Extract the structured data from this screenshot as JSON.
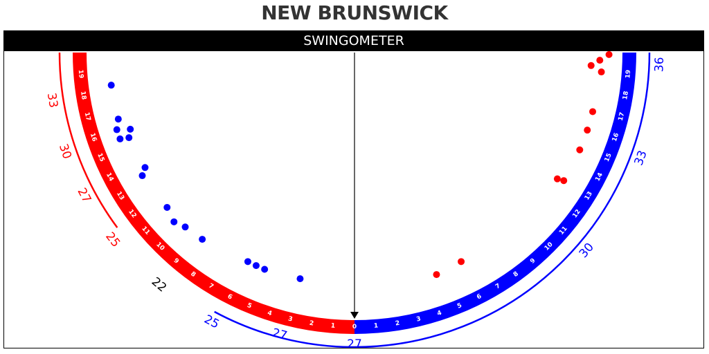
{
  "title": "NEW BRUNSWICK",
  "header": "SWINGOMETER",
  "colors": {
    "left": "#ff0000",
    "right": "#0000ff",
    "neutral": "#000000"
  },
  "chart_data": {
    "type": "scatter",
    "title": "NEW BRUNSWICK",
    "subtitle": "SWINGOMETER",
    "swing_range": [
      0,
      19
    ],
    "center_tick": "0",
    "left_ticks": [
      "1",
      "2",
      "3",
      "4",
      "5",
      "6",
      "7",
      "8",
      "9",
      "10",
      "11",
      "12",
      "13",
      "14",
      "15",
      "16",
      "17",
      "18",
      "19"
    ],
    "right_ticks": [
      "1",
      "2",
      "3",
      "4",
      "5",
      "6",
      "7",
      "8",
      "9",
      "10",
      "11",
      "12",
      "13",
      "14",
      "15",
      "16",
      "17",
      "18",
      "19"
    ],
    "center_label": "27",
    "seat_labels_right": [
      {
        "swing": 0,
        "text": "27"
      },
      {
        "swing": 11,
        "text": "30"
      },
      {
        "swing": 15.5,
        "text": "33"
      },
      {
        "swing": 19.5,
        "text": "36"
      }
    ],
    "seat_labels_left": [
      {
        "swing": 3.3,
        "text": "27"
      },
      {
        "swing": 6.2,
        "text": "25"
      },
      {
        "swing": 8.9,
        "text": "22"
      },
      {
        "swing": 11.6,
        "text": "25"
      },
      {
        "swing": 13.8,
        "text": "27"
      },
      {
        "swing": 15.8,
        "text": "30"
      },
      {
        "swing": 18.0,
        "text": "33"
      }
    ],
    "dots_left_side_blue": [
      {
        "swing": 3.0,
        "r": 1.18
      },
      {
        "swing": 5.0,
        "r": 1.17
      },
      {
        "swing": 5.5,
        "r": 1.17
      },
      {
        "swing": 6.0,
        "r": 1.17
      },
      {
        "swing": 8.7,
        "r": 1.14
      },
      {
        "swing": 9.8,
        "r": 1.13
      },
      {
        "swing": 10.4,
        "r": 1.11
      },
      {
        "swing": 11.2,
        "r": 1.13
      },
      {
        "swing": 13.3,
        "r": 1.12
      },
      {
        "swing": 13.6,
        "r": 1.15
      },
      {
        "swing": 15.4,
        "r": 1.14
      },
      {
        "swing": 15.5,
        "r": 1.1
      },
      {
        "swing": 15.8,
        "r": 1.16
      },
      {
        "swing": 16.0,
        "r": 1.1
      },
      {
        "swing": 16.5,
        "r": 1.12
      },
      {
        "swing": 18.3,
        "r": 1.12
      }
    ],
    "dots_right_side_red": [
      {
        "swing": 4.5,
        "r": 1.16
      },
      {
        "swing": 6.0,
        "r": 1.17
      },
      {
        "swing": 12.9,
        "r": 1.15
      },
      {
        "swing": 13.0,
        "r": 1.12
      },
      {
        "swing": 14.8,
        "r": 1.12
      },
      {
        "swing": 15.9,
        "r": 1.12
      },
      {
        "swing": 16.9,
        "r": 1.12
      },
      {
        "swing": 19.0,
        "r": 1.11
      },
      {
        "swing": 19.3,
        "r": 1.16
      },
      {
        "swing": 19.6,
        "r": 1.12
      },
      {
        "swing": 19.9,
        "r": 1.08
      }
    ]
  }
}
